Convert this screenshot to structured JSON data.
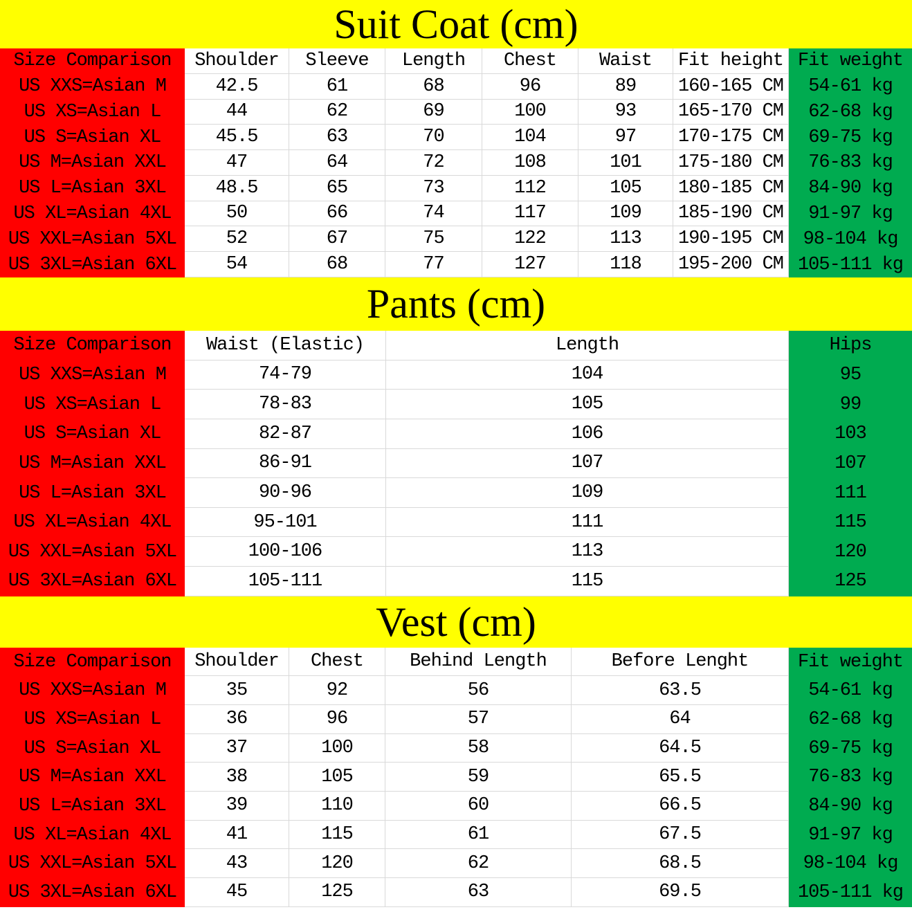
{
  "colors": {
    "title_band": "#FFFF00",
    "size_column": "#FF0000",
    "weight_column": "#00AB50",
    "gridline": "#D9D9D9",
    "text": "#000000"
  },
  "tables": [
    {
      "title": "Suit Coat (cm)",
      "header": [
        "Size Comparison",
        "Shoulder",
        "Sleeve",
        "Length",
        "Chest",
        "Waist",
        "Fit height",
        "Fit weight"
      ],
      "rows": [
        [
          "US XXS=Asian M",
          "42.5",
          "61",
          "68",
          "96",
          "89",
          "160-165 CM",
          "54-61 kg"
        ],
        [
          "US XS=Asian L",
          "44",
          "62",
          "69",
          "100",
          "93",
          "165-170 CM",
          "62-68 kg"
        ],
        [
          "US S=Asian XL",
          "45.5",
          "63",
          "70",
          "104",
          "97",
          "170-175 CM",
          "69-75 kg"
        ],
        [
          "US M=Asian XXL",
          "47",
          "64",
          "72",
          "108",
          "101",
          "175-180 CM",
          "76-83 kg"
        ],
        [
          "US L=Asian 3XL",
          "48.5",
          "65",
          "73",
          "112",
          "105",
          "180-185 CM",
          "84-90 kg"
        ],
        [
          "US XL=Asian 4XL",
          "50",
          "66",
          "74",
          "117",
          "109",
          "185-190 CM",
          "91-97 kg"
        ],
        [
          "US XXL=Asian 5XL",
          "52",
          "67",
          "75",
          "122",
          "113",
          "190-195 CM",
          "98-104 kg"
        ],
        [
          "US 3XL=Asian 6XL",
          "54",
          "68",
          "77",
          "127",
          "118",
          "195-200 CM",
          "105-111 kg"
        ]
      ]
    },
    {
      "title": "Pants (cm)",
      "header": [
        "Size Comparison",
        "Waist (Elastic)",
        "Length",
        "Hips"
      ],
      "rows": [
        [
          "US XXS=Asian M",
          "74-79",
          "104",
          "95"
        ],
        [
          "US XS=Asian L",
          "78-83",
          "105",
          "99"
        ],
        [
          "US S=Asian XL",
          "82-87",
          "106",
          "103"
        ],
        [
          "US M=Asian XXL",
          "86-91",
          "107",
          "107"
        ],
        [
          "US L=Asian 3XL",
          "90-96",
          "109",
          "111"
        ],
        [
          "US XL=Asian 4XL",
          "95-101",
          "111",
          "115"
        ],
        [
          "US XXL=Asian 5XL",
          "100-106",
          "113",
          "120"
        ],
        [
          "US 3XL=Asian 6XL",
          "105-111",
          "115",
          "125"
        ]
      ]
    },
    {
      "title": "Vest (cm)",
      "header": [
        "Size Comparison",
        "Shoulder",
        "Chest",
        "Behind Length",
        "Before Lenght",
        "Fit weight"
      ],
      "rows": [
        [
          "US XXS=Asian M",
          "35",
          "92",
          "56",
          "63.5",
          "54-61 kg"
        ],
        [
          "US XS=Asian L",
          "36",
          "96",
          "57",
          "64",
          "62-68 kg"
        ],
        [
          "US S=Asian XL",
          "37",
          "100",
          "58",
          "64.5",
          "69-75 kg"
        ],
        [
          "US M=Asian XXL",
          "38",
          "105",
          "59",
          "65.5",
          "76-83 kg"
        ],
        [
          "US L=Asian 3XL",
          "39",
          "110",
          "60",
          "66.5",
          "84-90 kg"
        ],
        [
          "US XL=Asian 4XL",
          "41",
          "115",
          "61",
          "67.5",
          "91-97 kg"
        ],
        [
          "US XXL=Asian 5XL",
          "43",
          "120",
          "62",
          "68.5",
          "98-104 kg"
        ],
        [
          "US 3XL=Asian 6XL",
          "45",
          "125",
          "63",
          "69.5",
          "105-111 kg"
        ]
      ]
    }
  ]
}
